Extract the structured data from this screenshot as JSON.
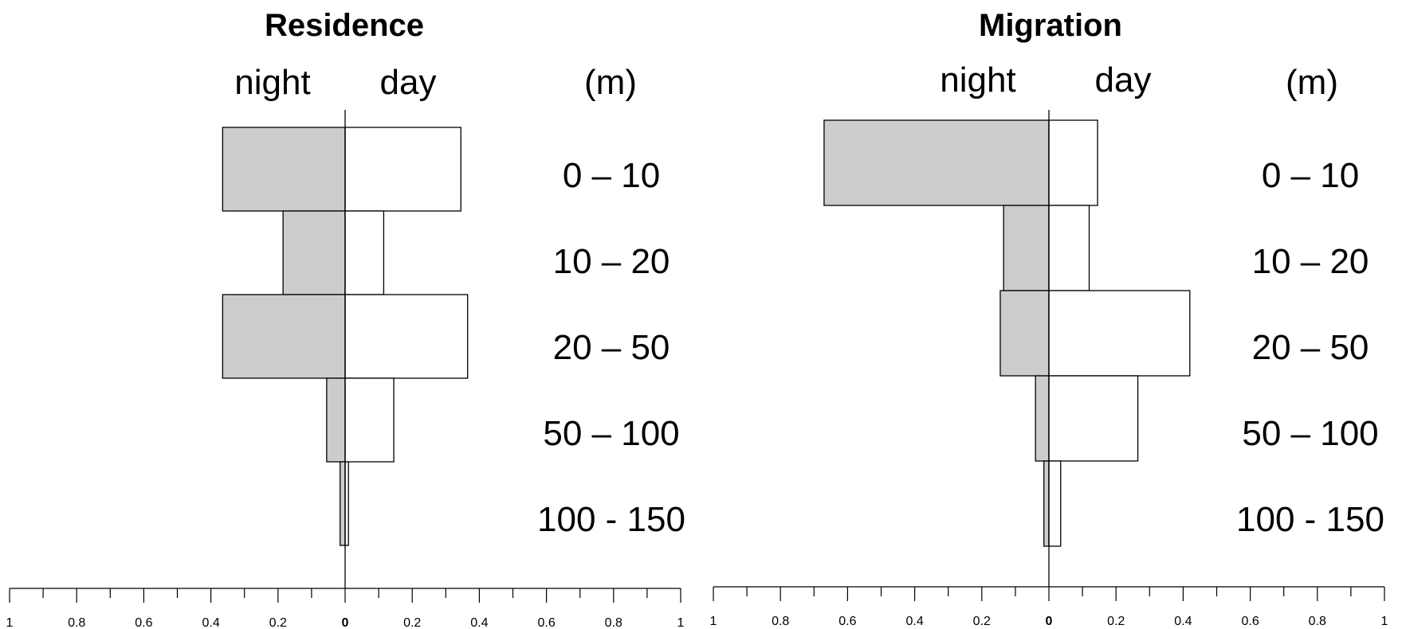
{
  "chart_data": [
    {
      "type": "bar",
      "title": "Residence",
      "left_label": "night",
      "right_label": "day",
      "unit_label": "(m)",
      "categories": [
        "0 – 10",
        "10 – 20",
        "20 – 50",
        "50 – 100",
        "100 - 150"
      ],
      "series": [
        {
          "name": "night",
          "values": [
            0.365,
            0.185,
            0.365,
            0.055,
            0.015
          ]
        },
        {
          "name": "day",
          "values": [
            0.345,
            0.115,
            0.365,
            0.145,
            0.01
          ]
        }
      ],
      "xlim": [
        -1,
        1
      ],
      "ticks": [
        "1",
        "0.8",
        "0.6",
        "0.4",
        "0.2",
        "0",
        "0.2",
        "0.4",
        "0.6",
        "0.8",
        "1"
      ],
      "colors": {
        "night": "#cccccc",
        "day": "#ffffff"
      }
    },
    {
      "type": "bar",
      "title": "Migration",
      "left_label": "night",
      "right_label": "day",
      "unit_label": "(m)",
      "categories": [
        "0 – 10",
        "10 – 20",
        "20 – 50",
        "50 – 100",
        "100 - 150"
      ],
      "series": [
        {
          "name": "night",
          "values": [
            0.67,
            0.135,
            0.145,
            0.04,
            0.015
          ]
        },
        {
          "name": "day",
          "values": [
            0.145,
            0.12,
            0.42,
            0.265,
            0.035
          ]
        }
      ],
      "xlim": [
        -1,
        1
      ],
      "ticks": [
        "1",
        "0.8",
        "0.6",
        "0.4",
        "0.2",
        "0",
        "0.2",
        "0.4",
        "0.6",
        "0.8",
        "1"
      ],
      "colors": {
        "night": "#cccccc",
        "day": "#ffffff"
      }
    }
  ]
}
